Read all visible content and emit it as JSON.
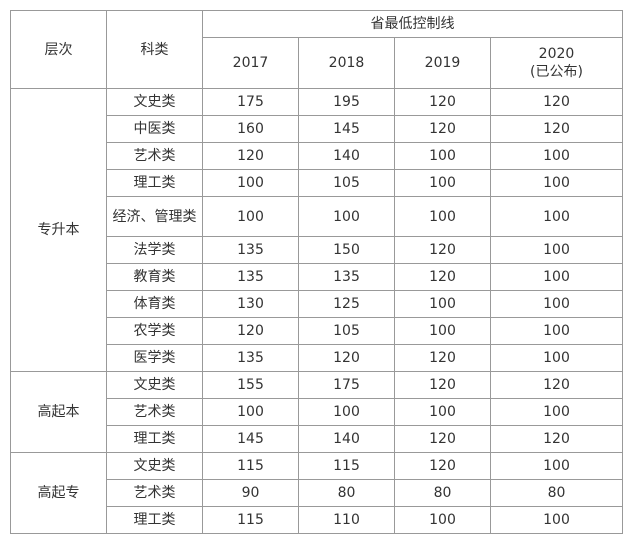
{
  "header": {
    "level": "层次",
    "category": "科类",
    "group": "省最低控制线",
    "years": [
      "2017",
      "2018",
      "2019",
      "2020"
    ],
    "note": "(已公布)"
  },
  "groups": [
    {
      "level": "专升本",
      "rows": [
        {
          "category": "文史类",
          "values": [
            175,
            195,
            120,
            120
          ]
        },
        {
          "category": "中医类",
          "values": [
            160,
            145,
            120,
            120
          ]
        },
        {
          "category": "艺术类",
          "values": [
            120,
            140,
            100,
            100
          ]
        },
        {
          "category": "理工类",
          "values": [
            100,
            105,
            100,
            100
          ]
        },
        {
          "category": "经济、管理类",
          "values": [
            100,
            100,
            100,
            100
          ]
        },
        {
          "category": "法学类",
          "values": [
            135,
            150,
            120,
            100
          ]
        },
        {
          "category": "教育类",
          "values": [
            135,
            135,
            120,
            100
          ]
        },
        {
          "category": "体育类",
          "values": [
            130,
            125,
            100,
            100
          ]
        },
        {
          "category": "农学类",
          "values": [
            120,
            105,
            100,
            100
          ]
        },
        {
          "category": "医学类",
          "values": [
            135,
            120,
            120,
            100
          ]
        }
      ]
    },
    {
      "level": "高起本",
      "rows": [
        {
          "category": "文史类",
          "values": [
            155,
            175,
            120,
            120
          ]
        },
        {
          "category": "艺术类",
          "values": [
            100,
            100,
            100,
            100
          ]
        },
        {
          "category": "理工类",
          "values": [
            145,
            140,
            120,
            120
          ]
        }
      ]
    },
    {
      "level": "高起专",
      "rows": [
        {
          "category": "文史类",
          "values": [
            115,
            115,
            120,
            100
          ]
        },
        {
          "category": "艺术类",
          "values": [
            90,
            80,
            80,
            80
          ]
        },
        {
          "category": "理工类",
          "values": [
            115,
            110,
            100,
            100
          ]
        }
      ]
    }
  ]
}
